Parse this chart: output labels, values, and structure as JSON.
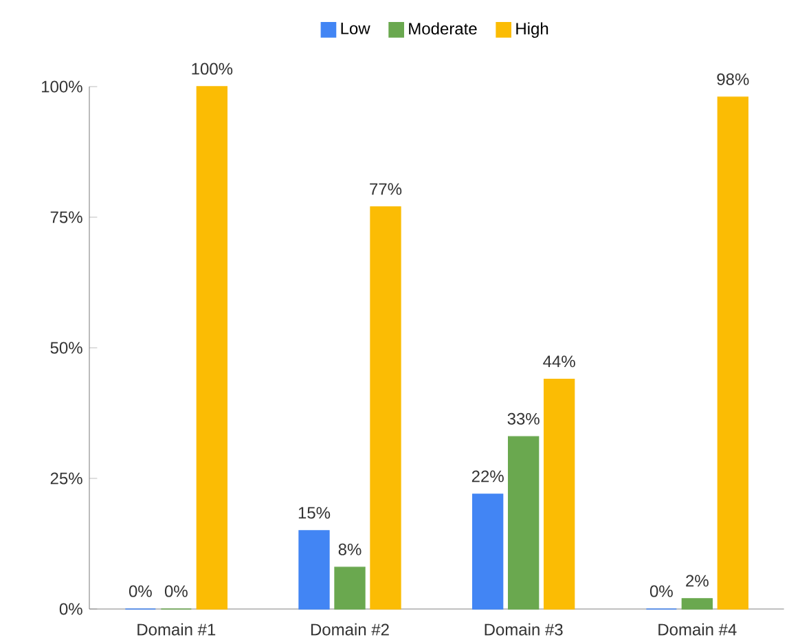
{
  "chart_data": {
    "type": "bar",
    "categories": [
      "Domain #1",
      "Domain #2",
      "Domain #3",
      "Domain #4"
    ],
    "series": [
      {
        "name": "Low",
        "color": "#4285f4",
        "values": [
          0,
          15,
          22,
          0
        ],
        "value_labels": [
          "0%",
          "15%",
          "22%",
          "0%"
        ]
      },
      {
        "name": "Moderate",
        "color": "#6aa84f",
        "values": [
          0,
          8,
          33,
          2
        ],
        "value_labels": [
          "0%",
          "8%",
          "33%",
          "2%"
        ]
      },
      {
        "name": "High",
        "color": "#fbbc04",
        "values": [
          100,
          77,
          44,
          98
        ],
        "value_labels": [
          "100%",
          "77%",
          "44%",
          "98%"
        ]
      }
    ],
    "ylim": [
      0,
      100
    ],
    "yticks": [
      {
        "value": 0,
        "label": "0%"
      },
      {
        "value": 25,
        "label": "25%"
      },
      {
        "value": 50,
        "label": "50%"
      },
      {
        "value": 75,
        "label": "75%"
      },
      {
        "value": 100,
        "label": "100%"
      }
    ],
    "legend": "top"
  }
}
